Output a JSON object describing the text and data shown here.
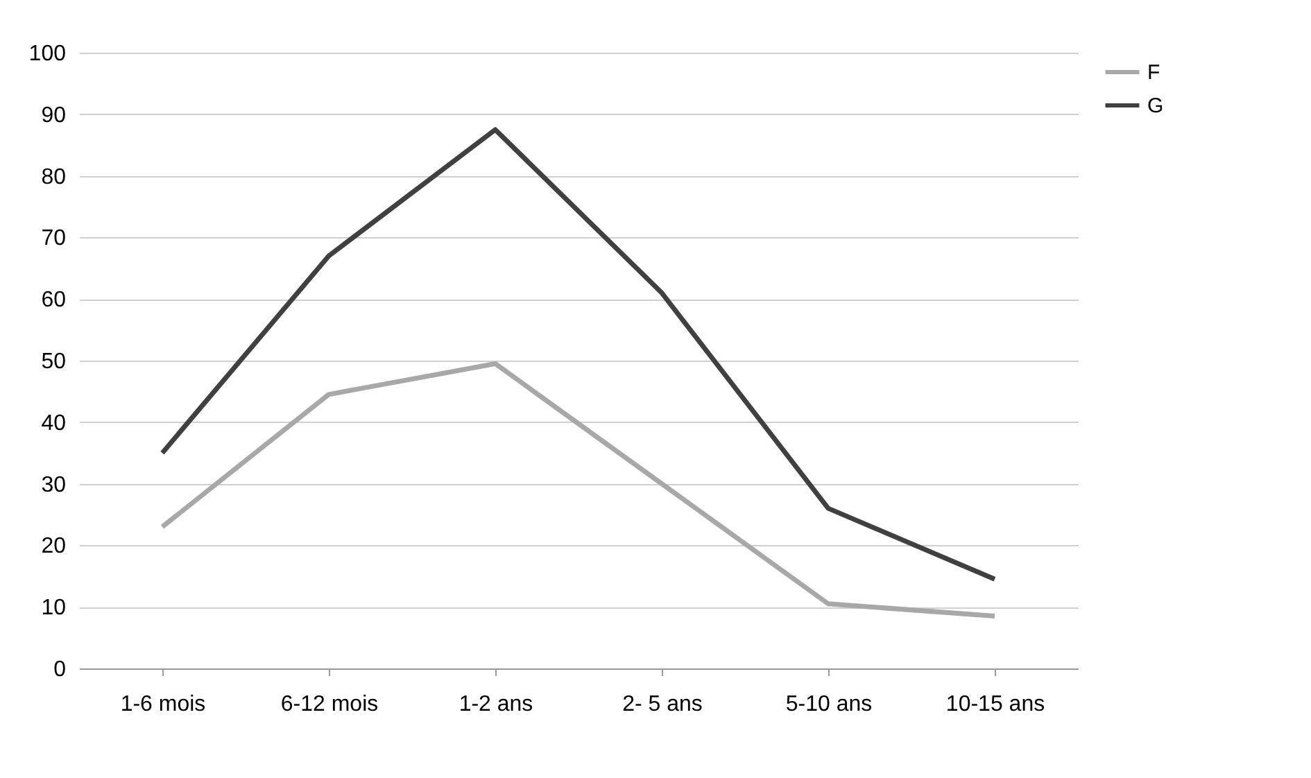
{
  "chart_data": {
    "type": "line",
    "categories": [
      "1-6 mois",
      "6-12 mois",
      "1-2 ans",
      "2- 5 ans",
      "5-10 ans",
      "10-15 ans"
    ],
    "series": [
      {
        "name": "F",
        "color": "#a8a8a8",
        "values": [
          23,
          44.5,
          49.5,
          30,
          10.5,
          8.5
        ]
      },
      {
        "name": "G",
        "color": "#404040",
        "values": [
          35,
          67,
          87.5,
          61,
          26,
          14.5
        ]
      }
    ],
    "ylim": [
      0,
      100
    ],
    "yticks": [
      0,
      10,
      20,
      30,
      40,
      50,
      60,
      70,
      80,
      90,
      100
    ],
    "grid": "y",
    "legend": "right",
    "marker": "none",
    "line_style": "solid"
  }
}
